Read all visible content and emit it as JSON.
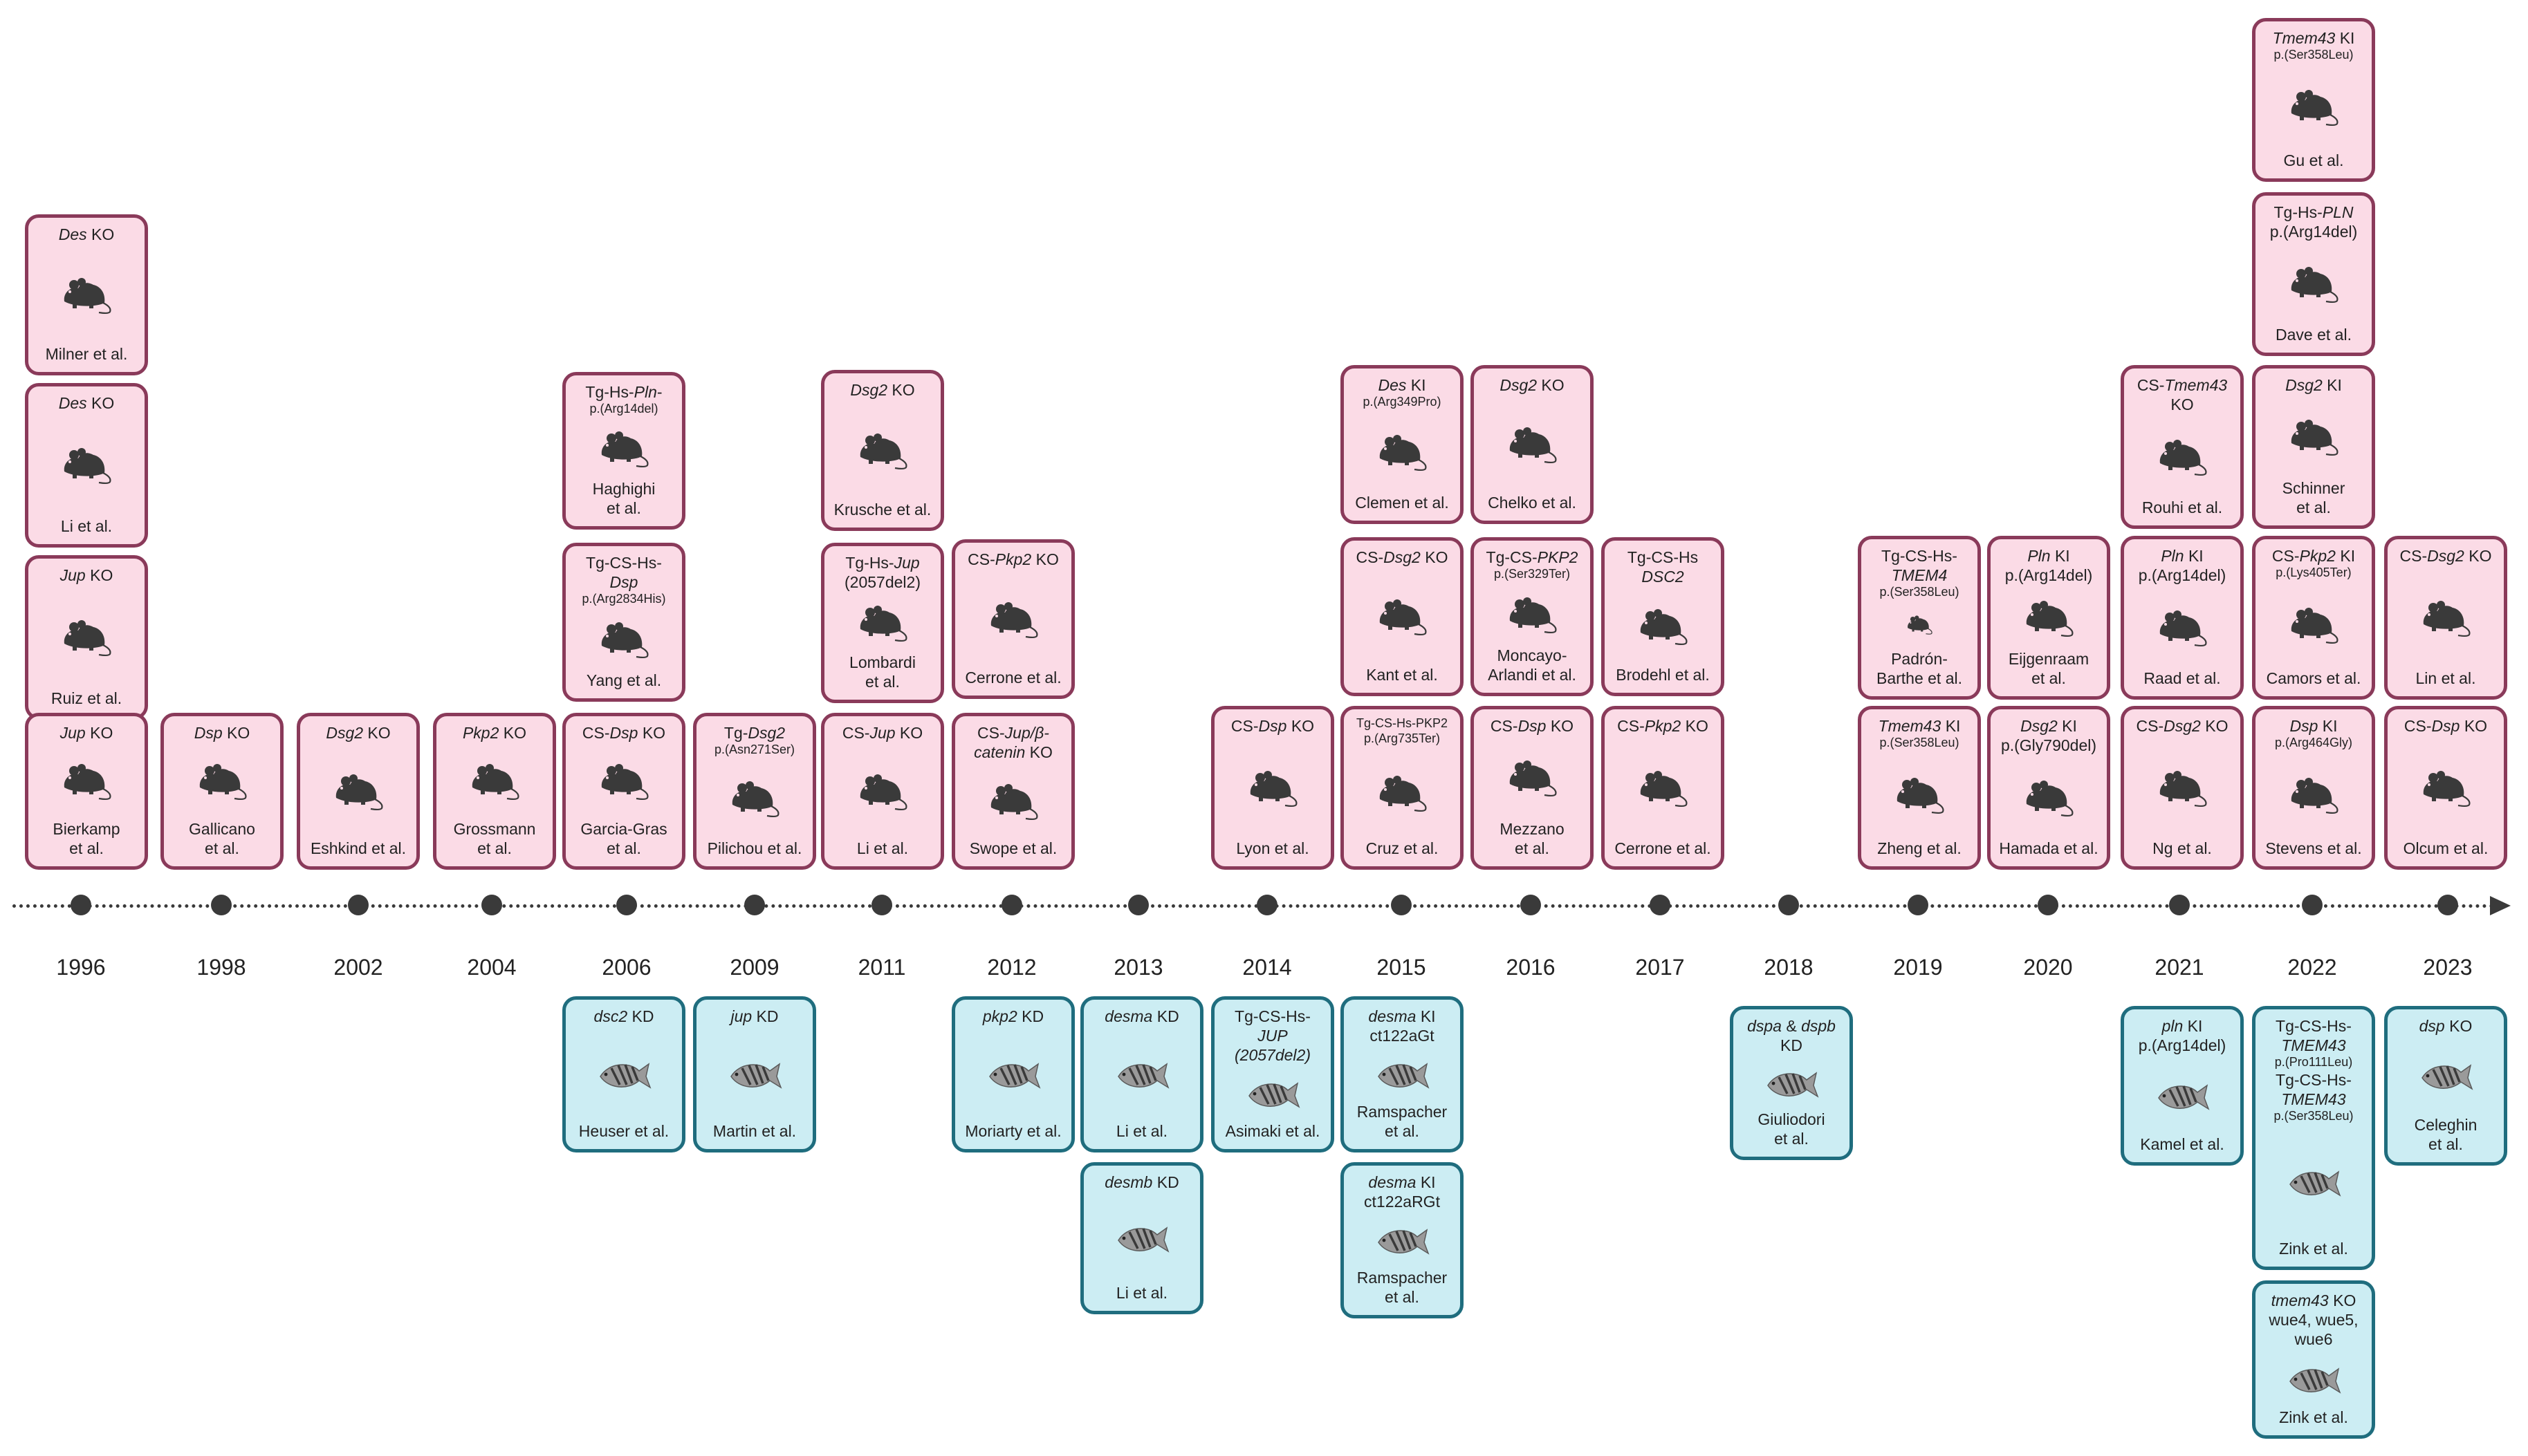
{
  "timeline": {
    "years": [
      "1996",
      "1998",
      "2002",
      "2004",
      "2006",
      "2009",
      "2011",
      "2012",
      "2013",
      "2014",
      "2015",
      "2016",
      "2017",
      "2018",
      "2019",
      "2020",
      "2021",
      "2022",
      "2023"
    ]
  },
  "legend_icons": {
    "mouse": "mouse-icon",
    "zebrafish": "zebrafish-icon"
  },
  "colors": {
    "mouse_fill": "#fbdbe6",
    "mouse_border": "#8a3a5a",
    "fish_fill": "#ccedf3",
    "fish_border": "#1f6d7e",
    "icon": "#3a3a3a"
  },
  "mouse_models": [
    {
      "year": "1996",
      "title": [
        [
          "Des",
          true
        ],
        [
          " KO",
          false
        ]
      ],
      "author": [
        "Milner et al."
      ]
    },
    {
      "year": "1996",
      "title": [
        [
          "Des",
          true
        ],
        [
          " KO",
          false
        ]
      ],
      "author": [
        "Li et al."
      ]
    },
    {
      "year": "1996",
      "title": [
        [
          "Jup",
          true
        ],
        [
          " KO",
          false
        ]
      ],
      "author": [
        "Ruiz et al."
      ]
    },
    {
      "year": "1996",
      "title": [
        [
          "Jup",
          true
        ],
        [
          " KO",
          false
        ]
      ],
      "author": [
        "Bierkamp",
        "et al."
      ]
    },
    {
      "year": "1998",
      "title": [
        [
          "Dsp",
          true
        ],
        [
          " KO",
          false
        ]
      ],
      "author": [
        "Gallicano",
        "et al."
      ]
    },
    {
      "year": "2002",
      "title": [
        [
          "Dsg2",
          true
        ],
        [
          " KO",
          false
        ]
      ],
      "author": [
        "Eshkind et al."
      ]
    },
    {
      "year": "2004",
      "title": [
        [
          "Pkp2",
          true
        ],
        [
          " KO",
          false
        ]
      ],
      "author": [
        "Grossmann",
        "et al."
      ]
    },
    {
      "year": "2006",
      "title": [
        [
          "Tg-Hs-",
          false
        ],
        [
          "Pln",
          true
        ],
        [
          "-",
          false
        ]
      ],
      "sub": [
        "p.(Arg14del)"
      ],
      "author": [
        "Haghighi",
        "et al."
      ]
    },
    {
      "year": "2006",
      "title": [
        [
          "Tg-CS-Hs-",
          false
        ]
      ],
      "title2": [
        [
          "Dsp",
          true
        ]
      ],
      "sub": [
        "p.(Arg2834His)"
      ],
      "author": [
        "Yang et al."
      ]
    },
    {
      "year": "2006",
      "title": [
        [
          "CS-",
          false
        ],
        [
          "Dsp",
          true
        ],
        [
          " KO",
          false
        ]
      ],
      "author": [
        "Garcia-Gras",
        "et al."
      ]
    },
    {
      "year": "2009",
      "title": [
        [
          "Tg-",
          false
        ],
        [
          "Dsg2",
          true
        ]
      ],
      "sub": [
        "p.(Asn271Ser)"
      ],
      "author": [
        "Pilichou et al."
      ]
    },
    {
      "year": "2011",
      "title": [
        [
          "Dsg2",
          true
        ],
        [
          " KO",
          false
        ]
      ],
      "author": [
        "Krusche et al."
      ]
    },
    {
      "year": "2011",
      "title": [
        [
          "Tg-Hs-",
          false
        ],
        [
          "Jup",
          true
        ]
      ],
      "title2": [
        [
          "(2057del2)",
          false
        ]
      ],
      "author": [
        "Lombardi",
        "et al."
      ]
    },
    {
      "year": "2011",
      "title": [
        [
          "CS-",
          false
        ],
        [
          "Jup",
          true
        ],
        [
          " KO",
          false
        ]
      ],
      "author": [
        "Li et al."
      ]
    },
    {
      "year": "2012",
      "title": [
        [
          "CS-",
          false
        ],
        [
          "Pkp2",
          true
        ],
        [
          " KO",
          false
        ]
      ],
      "author": [
        "Cerrone et al."
      ]
    },
    {
      "year": "2012",
      "title": [
        [
          "CS-",
          false
        ],
        [
          "Jup/β-",
          true
        ]
      ],
      "title2": [
        [
          "catenin",
          true
        ],
        [
          " KO",
          false
        ]
      ],
      "author": [
        "Swope et al."
      ]
    },
    {
      "year": "2014",
      "title": [
        [
          "CS-",
          false
        ],
        [
          "Dsp",
          true
        ],
        [
          " KO",
          false
        ]
      ],
      "author": [
        "Lyon et al."
      ]
    },
    {
      "year": "2015",
      "title": [
        [
          "Des",
          true
        ],
        [
          " KI",
          false
        ]
      ],
      "sub": [
        "p.(Arg349Pro)"
      ],
      "author": [
        "Clemen et al."
      ]
    },
    {
      "year": "2015",
      "title": [
        [
          "CS-",
          false
        ],
        [
          "Dsg2",
          true
        ],
        [
          " KO",
          false
        ]
      ],
      "author": [
        "Kant et al."
      ]
    },
    {
      "year": "2015",
      "title": [],
      "sub": [
        "Tg-CS-Hs-PKP2",
        "p.(Arg735Ter)"
      ],
      "author": [
        "Cruz et al."
      ]
    },
    {
      "year": "2016",
      "title": [
        [
          "Dsg2",
          true
        ],
        [
          " KO",
          false
        ]
      ],
      "author": [
        "Chelko et al."
      ]
    },
    {
      "year": "2016",
      "title": [
        [
          "Tg-CS-",
          false
        ],
        [
          "PKP2",
          true
        ]
      ],
      "sub": [
        "p.(Ser329Ter)"
      ],
      "author": [
        "Moncayo-",
        "Arlandi et al."
      ]
    },
    {
      "year": "2016",
      "title": [
        [
          "CS-",
          false
        ],
        [
          "Dsp",
          true
        ],
        [
          " KO",
          false
        ]
      ],
      "author": [
        "Mezzano",
        "et al."
      ]
    },
    {
      "year": "2017",
      "title": [
        [
          "Tg-CS-Hs",
          false
        ]
      ],
      "title2": [
        [
          "DSC2",
          true
        ]
      ],
      "author": [
        "Brodehl et al."
      ]
    },
    {
      "year": "2017",
      "title": [
        [
          "CS-",
          false
        ],
        [
          "Pkp2",
          true
        ],
        [
          "  KO",
          false
        ]
      ],
      "author": [
        "Cerrone et al."
      ]
    },
    {
      "year": "2019",
      "title": [
        [
          "Tg-CS-Hs-",
          false
        ]
      ],
      "title2": [
        [
          "TMEM4",
          true
        ]
      ],
      "sub": [
        "p.(Ser358Leu)"
      ],
      "author": [
        "Padrón-",
        "Barthe et al."
      ],
      "small": true
    },
    {
      "year": "2019",
      "title": [
        [
          "Tmem43",
          true
        ],
        [
          " KI",
          false
        ]
      ],
      "sub": [
        "p.(Ser358Leu)"
      ],
      "author": [
        "Zheng et al."
      ]
    },
    {
      "year": "2020",
      "title": [
        [
          "Pln",
          true
        ],
        [
          " KI",
          false
        ]
      ],
      "title2": [
        [
          "p.(Arg14del)",
          false
        ]
      ],
      "author": [
        "Eijgenraam",
        "et al."
      ]
    },
    {
      "year": "2020",
      "title": [
        [
          "Dsg2",
          true
        ],
        [
          " KI",
          false
        ]
      ],
      "title2": [
        [
          "p.(Gly790del)",
          false
        ]
      ],
      "author": [
        "Hamada et al."
      ]
    },
    {
      "year": "2021",
      "title": [
        [
          "CS-",
          false
        ],
        [
          "Tmem43",
          true
        ]
      ],
      "title2": [
        [
          "KO",
          false
        ]
      ],
      "author": [
        "Rouhi et al."
      ]
    },
    {
      "year": "2021",
      "title": [
        [
          "Pln",
          true
        ],
        [
          " KI",
          false
        ]
      ],
      "title2": [
        [
          "p.(Arg14del)",
          false
        ]
      ],
      "author": [
        "Raad et al."
      ]
    },
    {
      "year": "2021",
      "title": [
        [
          "CS-",
          false
        ],
        [
          "Dsg2",
          true
        ],
        [
          " KO",
          false
        ]
      ],
      "author": [
        "Ng et al."
      ]
    },
    {
      "year": "2022",
      "title": [
        [
          "Tmem43",
          true
        ],
        [
          " KI",
          false
        ]
      ],
      "sub": [
        "p.(Ser358Leu)"
      ],
      "author": [
        "Gu et al."
      ]
    },
    {
      "year": "2022",
      "title": [
        [
          "Tg-Hs-",
          false
        ],
        [
          "PLN",
          true
        ]
      ],
      "title2": [
        [
          "p.(Arg14del)",
          false
        ]
      ],
      "author": [
        "Dave et al."
      ]
    },
    {
      "year": "2022",
      "title": [
        [
          "Dsg2",
          true
        ],
        [
          " KI",
          false
        ]
      ],
      "author": [
        "Schinner",
        "et al."
      ]
    },
    {
      "year": "2022",
      "title": [
        [
          "CS-",
          false
        ],
        [
          "Pkp2",
          true
        ],
        [
          " KI",
          false
        ]
      ],
      "sub": [
        "p.(Lys405Ter)"
      ],
      "author": [
        "Camors et al."
      ]
    },
    {
      "year": "2022",
      "title": [
        [
          "Dsp",
          true
        ],
        [
          " KI",
          false
        ]
      ],
      "sub": [
        "p.(Arg464Gly)"
      ],
      "author": [
        "Stevens et al."
      ]
    },
    {
      "year": "2023",
      "title": [
        [
          "CS-",
          false
        ],
        [
          "Dsg2",
          true
        ],
        [
          " KO",
          false
        ]
      ],
      "author": [
        "Lin et al."
      ]
    },
    {
      "year": "2023",
      "title": [
        [
          "CS-",
          false
        ],
        [
          "Dsp",
          true
        ],
        [
          " KO",
          false
        ]
      ],
      "author": [
        "Olcum et al."
      ]
    }
  ],
  "zebrafish_models": [
    {
      "year": "2006",
      "title": [
        [
          "dsc2",
          true
        ],
        [
          " KD",
          false
        ]
      ],
      "author": [
        "Heuser et al."
      ]
    },
    {
      "year": "2009",
      "title": [
        [
          "jup",
          true
        ],
        [
          " KD",
          false
        ]
      ],
      "author": [
        "Martin et al."
      ]
    },
    {
      "year": "2012",
      "title": [
        [
          "pkp2",
          true
        ],
        [
          " KD",
          false
        ]
      ],
      "author": [
        "Moriarty et al."
      ]
    },
    {
      "year": "2013",
      "title": [
        [
          "desma",
          true
        ],
        [
          " KD",
          false
        ]
      ],
      "author": [
        "Li et al."
      ]
    },
    {
      "year": "2013",
      "title": [
        [
          "desmb",
          true
        ],
        [
          " KD",
          false
        ]
      ],
      "author": [
        "Li et al."
      ]
    },
    {
      "year": "2014",
      "title": [
        [
          "Tg-CS-Hs-",
          false
        ]
      ],
      "title2": [
        [
          "JUP",
          true
        ]
      ],
      "title3": [
        [
          "(2057del2)",
          true
        ]
      ],
      "author": [
        "Asimaki et al."
      ]
    },
    {
      "year": "2015",
      "title": [
        [
          "desma",
          true
        ],
        [
          " KI",
          false
        ]
      ],
      "title2": [
        [
          "ct122aGt",
          false
        ]
      ],
      "author": [
        "Ramspacher",
        "et al."
      ]
    },
    {
      "year": "2015",
      "title": [
        [
          "desma",
          true
        ],
        [
          " KI",
          false
        ]
      ],
      "title2": [
        [
          "ct122aRGt",
          false
        ]
      ],
      "author": [
        "Ramspacher",
        "et al."
      ]
    },
    {
      "year": "2018",
      "title": [
        [
          "dspa",
          true
        ],
        [
          " & ",
          false
        ],
        [
          "dspb",
          true
        ]
      ],
      "title2": [
        [
          "KD",
          false
        ]
      ],
      "author": [
        "Giuliodori",
        "et al."
      ]
    },
    {
      "year": "2021",
      "title": [
        [
          "pln",
          true
        ],
        [
          " KI",
          false
        ]
      ],
      "title2": [
        [
          "p.(Arg14del)",
          false
        ]
      ],
      "author": [
        "Kamel et al."
      ]
    },
    {
      "year": "2022",
      "title": [
        [
          "Tg-CS-Hs-",
          false
        ]
      ],
      "title2": [
        [
          "TMEM43",
          true
        ]
      ],
      "sub": [
        "p.(Pro111Leu)"
      ],
      "title4": [
        [
          "Tg-CS-Hs-",
          false
        ]
      ],
      "title5": [
        [
          "TMEM43",
          true
        ]
      ],
      "sub2": [
        "p.(Ser358Leu)"
      ],
      "author": [
        "Zink et al."
      ]
    },
    {
      "year": "2022",
      "title": [
        [
          "tmem43",
          true
        ],
        [
          " KO",
          false
        ]
      ],
      "title2": [
        [
          "wue4, wue5,",
          false
        ]
      ],
      "title3": [
        [
          "wue6",
          false
        ]
      ],
      "author": [
        "Zink et al."
      ]
    },
    {
      "year": "2023",
      "title": [
        [
          "dsp",
          true
        ],
        [
          " KO",
          false
        ]
      ],
      "author": [
        "Celeghin",
        "et al."
      ]
    }
  ]
}
